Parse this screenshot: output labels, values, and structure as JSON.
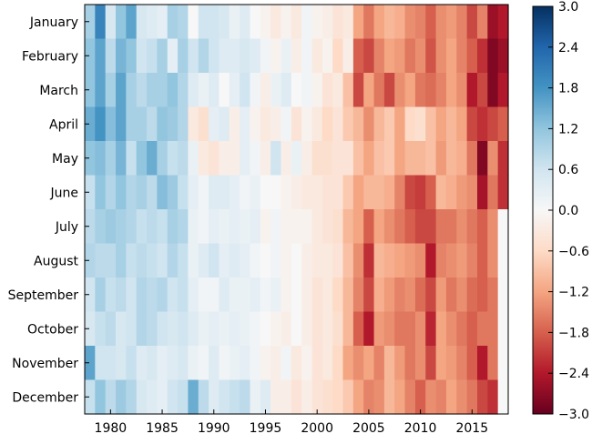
{
  "chart_data": {
    "type": "heatmap",
    "title": "",
    "xlabel": "",
    "ylabel": "",
    "y_categories": [
      "January",
      "February",
      "March",
      "April",
      "May",
      "June",
      "July",
      "August",
      "September",
      "October",
      "November",
      "December"
    ],
    "x_start_year": 1978,
    "x_end_year": 2018,
    "x_ticks": [
      1980,
      1985,
      1990,
      1995,
      2000,
      2005,
      2010,
      2015
    ],
    "colorbar": {
      "min": -3.0,
      "max": 3.0,
      "ticks": [
        3.0,
        2.4,
        1.8,
        1.2,
        0.6,
        0.0,
        -0.6,
        -1.2,
        -1.8,
        -2.4,
        -3.0
      ],
      "tick_labels": [
        "3.0",
        "2.4",
        "1.8",
        "1.2",
        "0.6",
        "0.0",
        "−0.6",
        "−1.2",
        "−1.8",
        "−2.4",
        "−3.0"
      ],
      "colormap": "RdBu"
    },
    "values": [
      [
        1.0,
        2.0,
        0.5,
        1.2,
        1.6,
        0.5,
        0.4,
        0.3,
        1.0,
        0.9,
        0.0,
        0.6,
        0.6,
        0.5,
        0.2,
        0.4,
        0.0,
        -0.1,
        -0.3,
        -0.1,
        -0.3,
        0.1,
        -0.1,
        -0.2,
        -0.4,
        -0.3,
        -1.2,
        -1.6,
        -1.2,
        -1.0,
        -1.1,
        -1.4,
        -1.5,
        -1.8,
        -1.4,
        -1.3,
        -1.5,
        -2.0,
        -1.5,
        -2.6,
        -2.4
      ],
      [
        1.2,
        1.6,
        0.8,
        1.4,
        1.2,
        0.6,
        0.7,
        1.0,
        0.3,
        1.0,
        0.6,
        0.9,
        0.6,
        0.4,
        0.4,
        0.5,
        0.4,
        0.1,
        -0.1,
        0.2,
        -0.2,
        0.1,
        -0.3,
        -0.1,
        -0.6,
        -0.2,
        -1.8,
        -2.0,
        -1.5,
        -1.2,
        -1.3,
        -1.6,
        -1.4,
        -1.9,
        -1.4,
        -1.2,
        -1.5,
        -1.8,
        -2.2,
        -2.8,
        -2.6
      ],
      [
        1.2,
        1.6,
        1.0,
        1.6,
        1.0,
        0.8,
        1.0,
        1.0,
        1.2,
        0.9,
        0.4,
        0.2,
        0.4,
        0.0,
        0.3,
        0.6,
        0.1,
        -0.2,
        0.2,
        0.4,
        0.0,
        0.1,
        -0.1,
        -0.4,
        -0.3,
        -0.9,
        -2.0,
        -1.2,
        -1.6,
        -2.0,
        -1.4,
        -1.2,
        -1.6,
        -1.7,
        -1.5,
        -1.2,
        -1.4,
        -2.4,
        -2.0,
        -2.8,
        -2.4
      ],
      [
        1.5,
        1.8,
        1.3,
        1.6,
        1.0,
        1.0,
        0.8,
        1.2,
        1.1,
        0.9,
        -0.3,
        -0.5,
        0.3,
        0.4,
        -0.2,
        0.3,
        -0.1,
        -0.3,
        -0.2,
        0.1,
        -0.4,
        -0.1,
        -0.3,
        -0.6,
        -0.4,
        -0.8,
        -1.0,
        -1.4,
        -1.0,
        -0.8,
        -1.2,
        -0.6,
        -0.5,
        -0.9,
        -1.2,
        -1.0,
        -1.2,
        -2.0,
        -2.2,
        -2.0,
        -1.8
      ],
      [
        1.2,
        1.3,
        1.0,
        1.4,
        0.7,
        1.2,
        1.5,
        1.0,
        0.7,
        0.8,
        0.2,
        -0.3,
        -0.4,
        -0.2,
        -0.2,
        0.3,
        0.1,
        -0.2,
        0.6,
        -0.2,
        0.2,
        -0.2,
        -0.5,
        -0.5,
        -0.4,
        -0.4,
        -0.9,
        -1.2,
        -0.9,
        -0.8,
        -1.2,
        -1.0,
        -1.0,
        -0.9,
        -1.3,
        -1.0,
        -1.1,
        -1.6,
        -2.8,
        -1.4,
        -2.2
      ],
      [
        0.7,
        1.2,
        0.9,
        1.2,
        0.9,
        1.0,
        0.8,
        1.3,
        1.1,
        0.7,
        0.3,
        0.1,
        0.4,
        0.4,
        0.3,
        0.1,
        0.2,
        0.0,
        0.0,
        -0.1,
        -0.2,
        -0.3,
        -0.3,
        -0.4,
        -0.4,
        -0.8,
        -1.2,
        -1.0,
        -1.0,
        -1.1,
        -1.5,
        -2.0,
        -2.1,
        -1.8,
        -1.0,
        -1.1,
        -1.3,
        -1.4,
        -2.5,
        -1.6,
        -2.2
      ],
      [
        0.8,
        1.0,
        1.1,
        1.0,
        0.9,
        0.7,
        0.8,
        0.7,
        1.0,
        0.9,
        0.2,
        0.1,
        0.3,
        0.2,
        0.3,
        0.2,
        0.3,
        -0.1,
        0.1,
        -0.1,
        -0.1,
        -0.1,
        -0.3,
        -0.4,
        -0.5,
        -1.0,
        -1.2,
        -1.8,
        -1.2,
        -1.4,
        -1.6,
        -1.8,
        -2.0,
        -2.0,
        -1.6,
        -1.6,
        -1.4,
        -1.6,
        -1.8,
        -1.4,
        0.0
      ],
      [
        0.9,
        0.8,
        0.8,
        1.0,
        0.7,
        0.8,
        0.7,
        0.6,
        0.9,
        0.7,
        0.2,
        0.4,
        0.6,
        0.3,
        0.4,
        0.3,
        0.1,
        0.0,
        0.1,
        -0.1,
        0.0,
        -0.2,
        -0.3,
        -0.3,
        -0.4,
        -0.9,
        -1.4,
        -2.2,
        -1.0,
        -1.1,
        -1.2,
        -1.3,
        -1.4,
        -2.4,
        -1.5,
        -1.4,
        -1.3,
        -1.5,
        -1.8,
        -1.4,
        0.0
      ],
      [
        0.6,
        1.0,
        0.7,
        0.8,
        0.6,
        0.9,
        0.8,
        0.9,
        0.6,
        0.7,
        0.3,
        0.1,
        0.1,
        0.4,
        0.2,
        0.2,
        0.3,
        0.1,
        0.2,
        -0.1,
        0.0,
        -0.2,
        -0.4,
        -0.3,
        -0.6,
        -1.0,
        -1.5,
        -2.0,
        -1.1,
        -1.3,
        -1.5,
        -1.4,
        -1.7,
        -2.0,
        -1.3,
        -1.6,
        -1.4,
        -1.7,
        -1.8,
        -1.6,
        0.0
      ],
      [
        0.5,
        0.7,
        0.8,
        0.5,
        0.6,
        0.9,
        0.8,
        0.6,
        0.5,
        0.6,
        0.4,
        0.2,
        0.3,
        0.2,
        0.3,
        0.2,
        0.1,
        0.0,
        -0.1,
        -0.2,
        0.0,
        -0.2,
        -0.4,
        -0.3,
        -0.5,
        -1.0,
        -1.8,
        -2.4,
        -1.3,
        -1.4,
        -1.6,
        -1.6,
        -1.4,
        -2.3,
        -1.2,
        -1.4,
        -1.6,
        -1.8,
        -1.6,
        -1.6,
        0.0
      ],
      [
        1.6,
        0.6,
        0.6,
        0.5,
        0.7,
        0.4,
        0.5,
        0.3,
        0.4,
        0.5,
        0.2,
        0.1,
        0.4,
        0.1,
        0.2,
        0.3,
        0.1,
        -0.1,
        -0.2,
        0.1,
        -0.3,
        -0.1,
        -0.4,
        -0.3,
        -0.6,
        -1.2,
        -1.4,
        -1.2,
        -1.5,
        -1.0,
        -1.3,
        -1.6,
        -1.4,
        -2.0,
        -1.2,
        -1.3,
        -1.5,
        -1.8,
        -2.4,
        -1.6,
        0.0
      ],
      [
        0.7,
        1.2,
        0.8,
        1.1,
        0.9,
        0.5,
        0.4,
        0.3,
        0.6,
        0.7,
        1.5,
        0.8,
        0.4,
        0.6,
        0.7,
        0.8,
        0.2,
        0.4,
        -0.2,
        -0.2,
        -0.4,
        -0.2,
        -0.4,
        -0.5,
        -0.6,
        -0.8,
        -1.2,
        -1.5,
        -1.4,
        -1.0,
        -1.2,
        -1.5,
        -1.8,
        -1.4,
        -1.5,
        -1.2,
        -1.4,
        -1.6,
        -2.0,
        -2.2,
        0.0
      ]
    ]
  }
}
